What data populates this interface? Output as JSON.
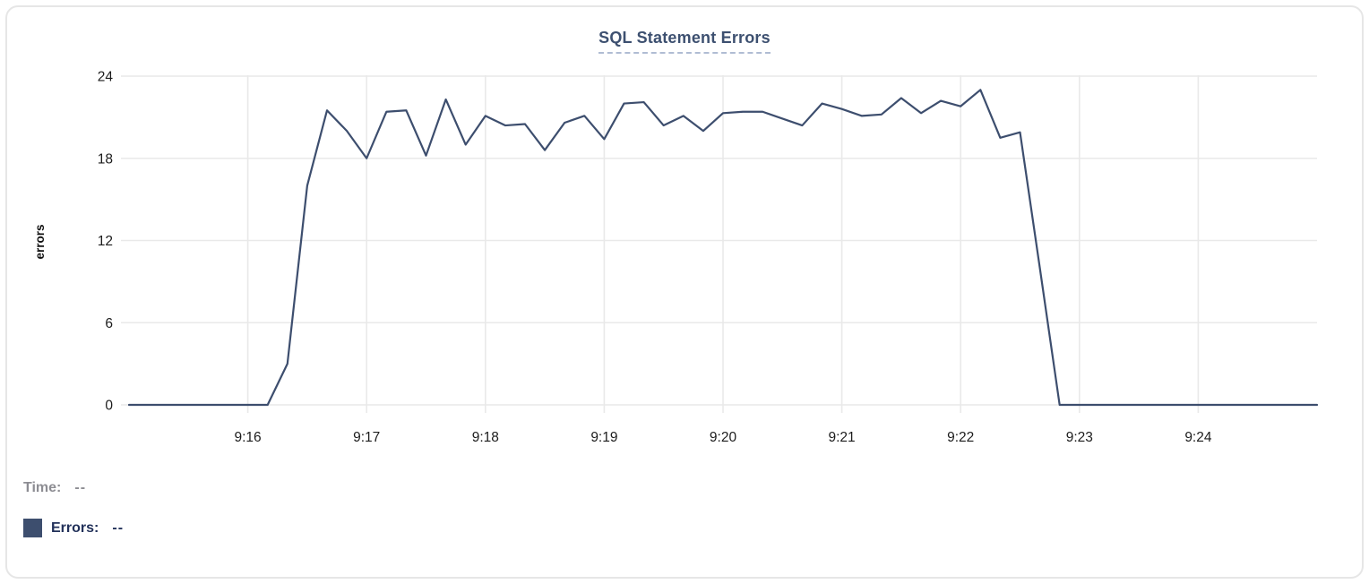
{
  "title": "SQL Statement Errors",
  "colors": {
    "line": "#3d4e6e",
    "swatch": "#3d4e6e",
    "title": "#3d5070",
    "title_underline": "#b0bcd3",
    "grid": "#e9e9e9",
    "tick_text": "#1c1c1c",
    "time_label": "#8d8d93",
    "errors_label": "#22315a",
    "card_border": "#e6e6e6"
  },
  "y_axis": {
    "title": "errors",
    "ticks": [
      0,
      6,
      12,
      18,
      24
    ]
  },
  "x_axis": {
    "tick_labels": [
      "9:16",
      "9:17",
      "9:18",
      "9:19",
      "9:20",
      "9:21",
      "9:22",
      "9:23",
      "9:24"
    ]
  },
  "tooltip": {
    "time_label": "Time:",
    "time_value": "--",
    "errors_label": "Errors:",
    "errors_value": "--"
  },
  "chart_data": {
    "type": "line",
    "title": "SQL Statement Errors",
    "xlabel": "",
    "ylabel": "errors",
    "ylim": [
      0,
      24
    ],
    "x_range": [
      "9:15:00",
      "9:25:00"
    ],
    "interval_seconds": 10,
    "grid": "on",
    "legend_position": "below",
    "series": [
      {
        "name": "Errors",
        "x": [
          "9:15:00",
          "9:15:10",
          "9:15:20",
          "9:15:30",
          "9:15:40",
          "9:15:50",
          "9:16:00",
          "9:16:10",
          "9:16:20",
          "9:16:30",
          "9:16:40",
          "9:16:50",
          "9:17:00",
          "9:17:10",
          "9:17:20",
          "9:17:30",
          "9:17:40",
          "9:17:50",
          "9:18:00",
          "9:18:10",
          "9:18:20",
          "9:18:30",
          "9:18:40",
          "9:18:50",
          "9:19:00",
          "9:19:10",
          "9:19:20",
          "9:19:30",
          "9:19:40",
          "9:19:50",
          "9:20:00",
          "9:20:10",
          "9:20:20",
          "9:20:30",
          "9:20:40",
          "9:20:50",
          "9:21:00",
          "9:21:10",
          "9:21:20",
          "9:21:30",
          "9:21:40",
          "9:21:50",
          "9:22:00",
          "9:22:10",
          "9:22:20",
          "9:22:30",
          "9:22:40",
          "9:22:50",
          "9:23:00",
          "9:23:10",
          "9:23:20",
          "9:23:30",
          "9:23:40",
          "9:23:50",
          "9:24:00",
          "9:24:10",
          "9:24:20",
          "9:24:30",
          "9:24:40",
          "9:24:50",
          "9:25:00"
        ],
        "values": [
          0,
          0,
          0,
          0,
          0,
          0,
          0,
          0,
          3,
          16,
          21.5,
          20,
          18,
          21.4,
          21.5,
          18.2,
          22.3,
          19,
          21.1,
          20.4,
          20.5,
          18.6,
          20.6,
          21.1,
          19.4,
          22,
          22.1,
          20.4,
          21.1,
          20,
          21.3,
          21.4,
          21.4,
          20.9,
          20.4,
          22,
          21.6,
          21.1,
          21.2,
          22.4,
          21.3,
          22.2,
          21.8,
          23,
          19.5,
          19.9,
          10,
          0,
          0,
          0,
          0,
          0,
          0,
          0,
          0,
          0,
          0,
          0,
          0,
          0,
          0
        ]
      }
    ]
  }
}
